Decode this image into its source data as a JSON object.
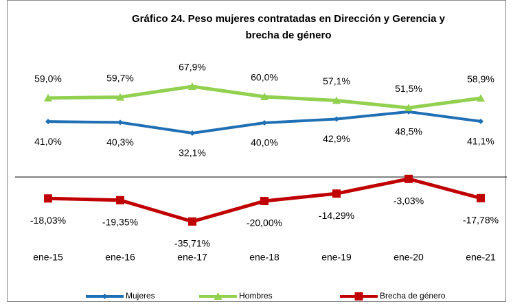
{
  "chart_data": {
    "type": "line",
    "title": [
      "Gráfico 24. Peso mujeres contratadas en Dirección y Gerencia y",
      "brecha de género"
    ],
    "categories": [
      "ene-15",
      "ene-16",
      "ene-17",
      "ene-18",
      "ene-19",
      "ene-20",
      "ene-21"
    ],
    "ylim": [
      -40,
      80
    ],
    "legend": "bottom",
    "series": [
      {
        "name": "Mujeres",
        "color": "#1f6fb5",
        "marker": "diamond",
        "label_position": "below",
        "values": [
          41.0,
          40.3,
          32.1,
          40.0,
          42.9,
          48.5,
          41.1
        ],
        "value_labels": [
          "41,0%",
          "40,3%",
          "32,1%",
          "40,0%",
          "42,9%",
          "48,5%",
          "41,1%"
        ]
      },
      {
        "name": "Hombres",
        "color": "#92d050",
        "marker": "triangle",
        "label_position": "above",
        "values": [
          59.0,
          59.7,
          67.9,
          60.0,
          57.1,
          51.5,
          58.9
        ],
        "value_labels": [
          "59,0%",
          "59,7%",
          "67,9%",
          "60,0%",
          "57,1%",
          "51,5%",
          "58,9%"
        ]
      },
      {
        "name": "Brecha de género",
        "color": "#c00000",
        "marker": "square",
        "label_position": "below",
        "values": [
          -18.03,
          -19.35,
          -35.71,
          -20.0,
          -14.29,
          -3.03,
          -17.78
        ],
        "value_labels": [
          "-18,03%",
          "-19,35%",
          "-35,71%",
          "-20,00%",
          "-14,29%",
          "-3,03%",
          "-17,78%"
        ]
      }
    ]
  }
}
